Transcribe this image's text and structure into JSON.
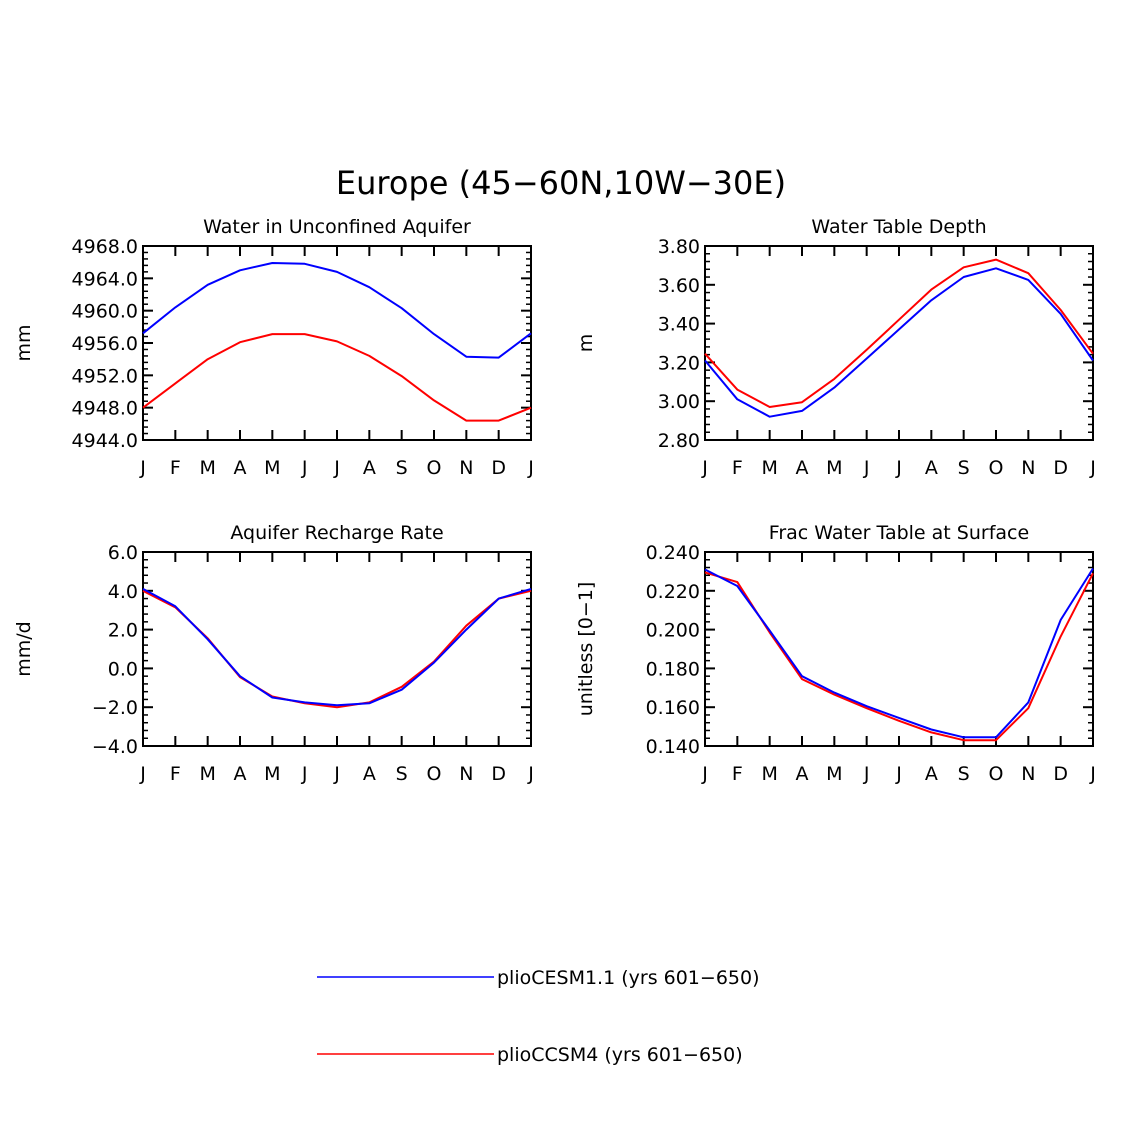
{
  "figure": {
    "title": "Europe (45−60N,10W−30E)"
  },
  "colors": {
    "series_1": "#0000ff",
    "series_2": "#ff0000"
  },
  "legend": [
    {
      "label": "plioCESM1.1 (yrs 601−650)",
      "color": "#0000ff"
    },
    {
      "label": "plioCCSM4 (yrs 601−650)",
      "color": "#ff0000"
    }
  ],
  "chart_data": [
    {
      "type": "line",
      "title": "Water in Unconfined Aquifer",
      "xlabel": "",
      "ylabel": "mm",
      "categories": [
        "J",
        "F",
        "M",
        "A",
        "M",
        "J",
        "J",
        "A",
        "S",
        "O",
        "N",
        "D",
        "J"
      ],
      "ylim": [
        4944.0,
        4968.0
      ],
      "yticks": [
        4944.0,
        4948.0,
        4952.0,
        4956.0,
        4960.0,
        4964.0,
        4968.0
      ],
      "tick_labels": [
        "4944.0",
        "4948.0",
        "4952.0",
        "4956.0",
        "4960.0",
        "4964.0",
        "4968.0"
      ],
      "series": [
        {
          "name": "plioCESM1.1 (yrs 601−650)",
          "color": "#0000ff",
          "values": [
            4957.2,
            4960.4,
            4963.2,
            4965.0,
            4965.9,
            4965.8,
            4964.8,
            4962.9,
            4960.3,
            4957.1,
            4954.3,
            4954.2,
            4957.2
          ]
        },
        {
          "name": "plioCCSM4 (yrs 601−650)",
          "color": "#ff0000",
          "values": [
            4948.0,
            4951.0,
            4954.0,
            4956.1,
            4957.1,
            4957.1,
            4956.2,
            4954.4,
            4951.9,
            4948.9,
            4946.4,
            4946.4,
            4948.0
          ]
        }
      ]
    },
    {
      "type": "line",
      "title": "Water Table Depth",
      "xlabel": "",
      "ylabel": "m",
      "categories": [
        "J",
        "F",
        "M",
        "A",
        "M",
        "J",
        "J",
        "A",
        "S",
        "O",
        "N",
        "D",
        "J"
      ],
      "ylim": [
        2.8,
        3.8
      ],
      "yticks": [
        2.8,
        3.0,
        3.2,
        3.4,
        3.6,
        3.8
      ],
      "tick_labels": [
        "2.80",
        "3.00",
        "3.20",
        "3.40",
        "3.60",
        "3.80"
      ],
      "series": [
        {
          "name": "plioCESM1.1 (yrs 601−650)",
          "color": "#0000ff",
          "values": [
            3.21,
            3.01,
            2.92,
            2.95,
            3.07,
            3.22,
            3.37,
            3.52,
            3.64,
            3.685,
            3.625,
            3.45,
            3.21
          ]
        },
        {
          "name": "plioCCSM4 (yrs 601−650)",
          "color": "#ff0000",
          "values": [
            3.245,
            3.06,
            2.97,
            2.995,
            3.115,
            3.265,
            3.42,
            3.575,
            3.69,
            3.73,
            3.66,
            3.47,
            3.245
          ]
        }
      ]
    },
    {
      "type": "line",
      "title": "Aquifer Recharge Rate",
      "xlabel": "",
      "ylabel": "mm/d",
      "categories": [
        "J",
        "F",
        "M",
        "A",
        "M",
        "J",
        "J",
        "A",
        "S",
        "O",
        "N",
        "D",
        "J"
      ],
      "ylim": [
        -4.0,
        6.0
      ],
      "yticks": [
        -4.0,
        -2.0,
        0.0,
        2.0,
        4.0,
        6.0
      ],
      "tick_labels": [
        "−4.0",
        "−2.0",
        "0.0",
        "2.0",
        "4.0",
        "6.0"
      ],
      "series": [
        {
          "name": "plioCESM1.1 (yrs 601−650)",
          "color": "#0000ff",
          "values": [
            4.1,
            3.2,
            1.5,
            -0.4,
            -1.5,
            -1.75,
            -1.9,
            -1.8,
            -1.1,
            0.3,
            2.0,
            3.6,
            4.1
          ]
        },
        {
          "name": "plioCCSM4 (yrs 601−650)",
          "color": "#ff0000",
          "values": [
            4.0,
            3.15,
            1.55,
            -0.45,
            -1.45,
            -1.8,
            -2.0,
            -1.75,
            -0.95,
            0.35,
            2.2,
            3.6,
            4.0
          ]
        }
      ]
    },
    {
      "type": "line",
      "title": "Frac Water Table at Surface",
      "xlabel": "",
      "ylabel": "unitless [0−1]",
      "categories": [
        "J",
        "F",
        "M",
        "A",
        "M",
        "J",
        "J",
        "A",
        "S",
        "O",
        "N",
        "D",
        "J"
      ],
      "ylim": [
        0.14,
        0.24
      ],
      "yticks": [
        0.14,
        0.16,
        0.18,
        0.2,
        0.22,
        0.24
      ],
      "tick_labels": [
        "0.140",
        "0.160",
        "0.180",
        "0.200",
        "0.220",
        "0.240"
      ],
      "series": [
        {
          "name": "plioCESM1.1 (yrs 601−650)",
          "color": "#0000ff",
          "values": [
            0.231,
            0.2225,
            0.1995,
            0.176,
            0.1675,
            0.1605,
            0.1545,
            0.1485,
            0.1445,
            0.1445,
            0.1625,
            0.205,
            0.2315
          ]
        },
        {
          "name": "plioCCSM4 (yrs 601−650)",
          "color": "#ff0000",
          "values": [
            0.2295,
            0.2245,
            0.1985,
            0.1745,
            0.1665,
            0.1595,
            0.153,
            0.147,
            0.143,
            0.143,
            0.1595,
            0.1965,
            0.229
          ]
        }
      ]
    }
  ]
}
